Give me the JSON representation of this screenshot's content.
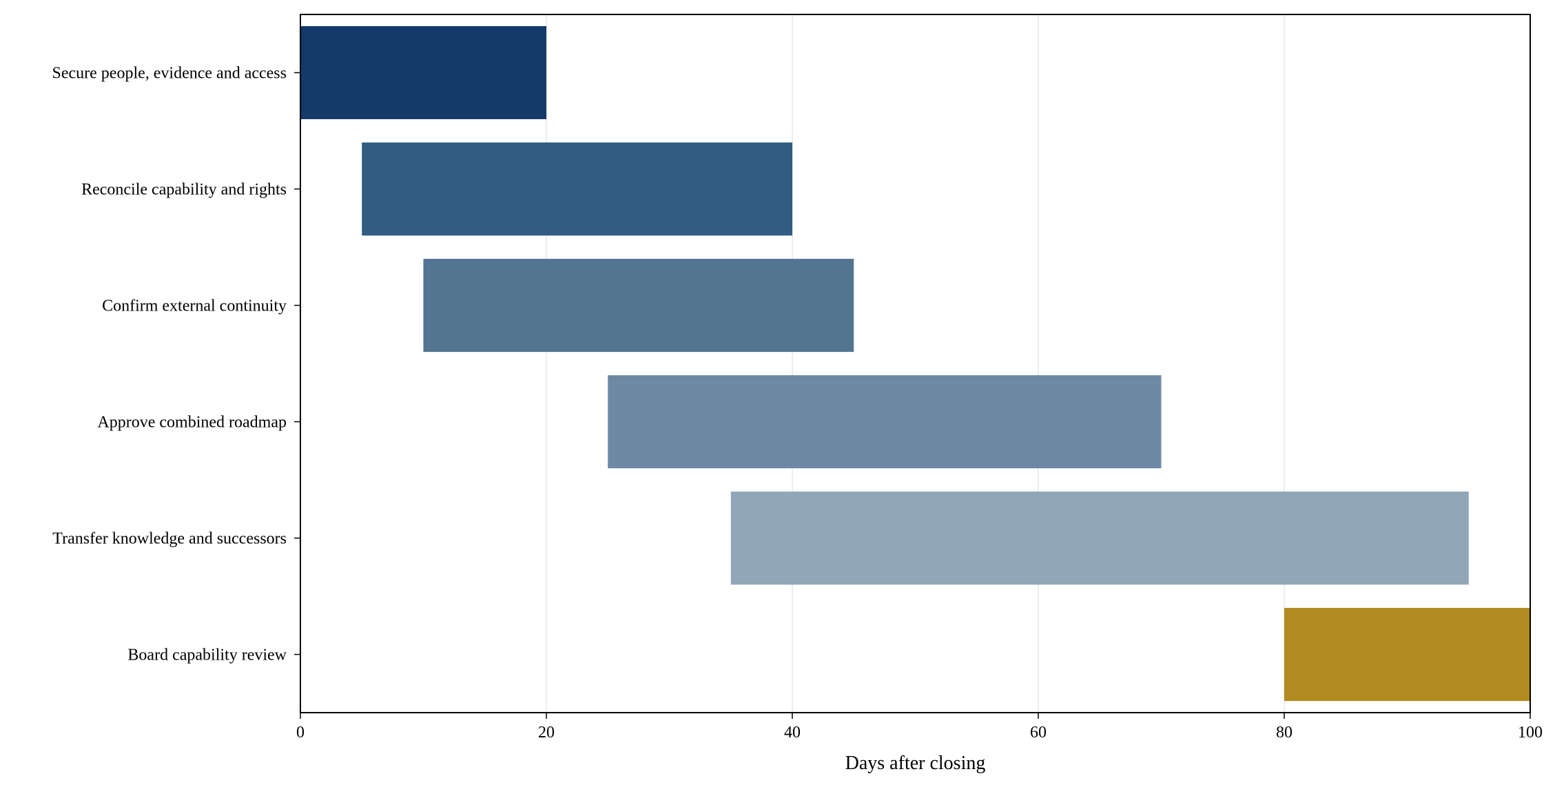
{
  "chart_data": {
    "type": "bar",
    "orientation": "horizontal",
    "xlabel": "Days after closing",
    "ylabel": "",
    "title": "",
    "xlim": [
      0,
      100
    ],
    "xticks": [
      0,
      20,
      40,
      60,
      80,
      100
    ],
    "grid": "vertical",
    "tasks": [
      {
        "label": "Secure people, evidence and access",
        "start": 0,
        "end": 20,
        "color": "#133a68"
      },
      {
        "label": "Reconcile capability and rights",
        "start": 5,
        "end": 40,
        "color": "#335c82"
      },
      {
        "label": "Confirm external continuity",
        "start": 10,
        "end": 45,
        "color": "#527592"
      },
      {
        "label": "Approve combined roadmap",
        "start": 25,
        "end": 70,
        "color": "#6d89a4"
      },
      {
        "label": "Transfer knowledge and successors",
        "start": 35,
        "end": 95,
        "color": "#91a6b8"
      },
      {
        "label": "Board capability review",
        "start": 80,
        "end": 100,
        "color": "#b28b21"
      }
    ]
  }
}
